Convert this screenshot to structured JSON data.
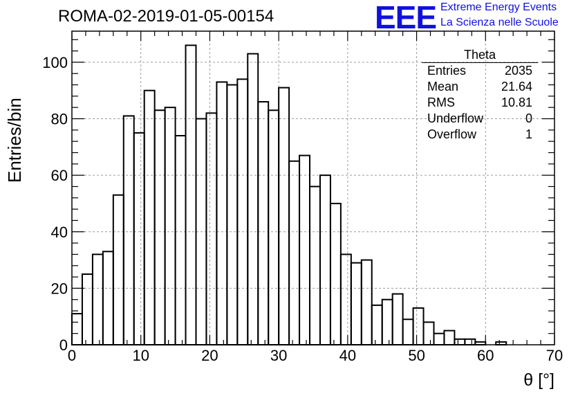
{
  "title": "ROMA-02-2019-01-05-00154",
  "logo": {
    "mark": "EEE",
    "line1": "Extreme Energy Events",
    "line2": "La Scienza nelle Scuole"
  },
  "stats": {
    "title": "Theta",
    "rows": [
      {
        "label": "Entries",
        "value": "2035"
      },
      {
        "label": "Mean",
        "value": "21.64"
      },
      {
        "label": "RMS",
        "value": "10.81"
      },
      {
        "label": "Underflow",
        "value": "0"
      },
      {
        "label": "Overflow",
        "value": "1"
      }
    ]
  },
  "chart_data": {
    "type": "histogram",
    "title": "ROMA-02-2019-01-05-00154",
    "xlabel": "θ [°]",
    "ylabel": "Entries/bin",
    "xlim": [
      0,
      70
    ],
    "ylim": [
      0,
      111
    ],
    "bin_width": 1.5,
    "x_start": 0,
    "values": [
      11,
      25,
      32,
      33,
      53,
      81,
      75,
      90,
      83,
      84,
      74,
      106,
      80,
      82,
      93,
      92,
      94,
      103,
      86,
      83,
      91,
      65,
      67,
      56,
      60,
      50,
      32,
      29,
      30,
      14,
      16,
      18,
      9,
      13,
      8,
      4,
      5,
      2,
      2,
      1,
      0,
      1,
      0,
      0,
      0,
      0,
      0,
      0,
      0,
      0,
      0,
      0,
      0,
      0,
      0
    ],
    "x_ticks": [
      "0",
      "10",
      "20",
      "30",
      "40",
      "50",
      "60",
      "70"
    ],
    "y_ticks": [
      "0",
      "20",
      "40",
      "60",
      "80",
      "100"
    ],
    "grid": true,
    "colors": {
      "line": "#000000",
      "grid": "#9a9a9a"
    }
  }
}
